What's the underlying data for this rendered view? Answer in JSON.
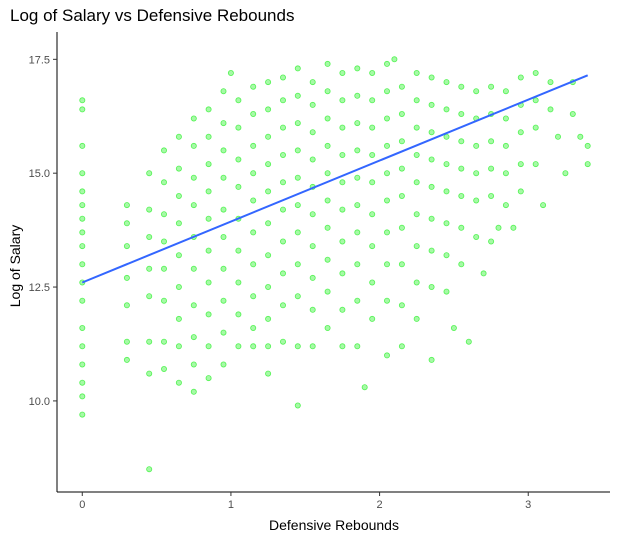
{
  "chart_data": {
    "type": "scatter",
    "title": "Log of Salary vs Defensive Rebounds",
    "xlabel": "Defensive Rebounds",
    "ylabel": "Log of Salary",
    "xlim": [
      -0.17,
      3.55
    ],
    "ylim": [
      8.0,
      18.1
    ],
    "x_ticks": [
      0,
      1,
      2,
      3
    ],
    "y_ticks": [
      10.0,
      12.5,
      15.0,
      17.5
    ],
    "x_tick_labels": [
      "0",
      "1",
      "2",
      "3"
    ],
    "y_tick_labels": [
      "10.0",
      "12.5",
      "15.0",
      "17.5"
    ],
    "grid": false,
    "series": [
      {
        "kind": "points",
        "color": "#00ee00",
        "opacity": 0.35,
        "points": [
          [
            0.0,
            16.6
          ],
          [
            0.0,
            16.4
          ],
          [
            0.0,
            15.6
          ],
          [
            0.0,
            15.0
          ],
          [
            0.0,
            14.6
          ],
          [
            0.0,
            14.3
          ],
          [
            0.0,
            14.0
          ],
          [
            0.0,
            13.7
          ],
          [
            0.0,
            13.4
          ],
          [
            0.0,
            13.0
          ],
          [
            0.0,
            12.6
          ],
          [
            0.0,
            12.2
          ],
          [
            0.0,
            11.6
          ],
          [
            0.0,
            11.2
          ],
          [
            0.0,
            10.8
          ],
          [
            0.0,
            10.4
          ],
          [
            0.0,
            10.1
          ],
          [
            0.0,
            9.7
          ],
          [
            0.3,
            14.3
          ],
          [
            0.3,
            13.9
          ],
          [
            0.3,
            13.4
          ],
          [
            0.3,
            12.7
          ],
          [
            0.3,
            12.1
          ],
          [
            0.3,
            11.3
          ],
          [
            0.3,
            10.9
          ],
          [
            0.45,
            15.0
          ],
          [
            0.45,
            14.2
          ],
          [
            0.45,
            13.6
          ],
          [
            0.45,
            12.9
          ],
          [
            0.45,
            12.3
          ],
          [
            0.45,
            11.3
          ],
          [
            0.45,
            10.6
          ],
          [
            0.45,
            8.5
          ],
          [
            0.55,
            15.5
          ],
          [
            0.55,
            14.8
          ],
          [
            0.55,
            14.1
          ],
          [
            0.55,
            13.5
          ],
          [
            0.55,
            12.9
          ],
          [
            0.55,
            12.2
          ],
          [
            0.55,
            11.3
          ],
          [
            0.55,
            10.7
          ],
          [
            0.65,
            15.8
          ],
          [
            0.65,
            15.1
          ],
          [
            0.65,
            14.5
          ],
          [
            0.65,
            13.9
          ],
          [
            0.65,
            13.2
          ],
          [
            0.65,
            12.5
          ],
          [
            0.65,
            11.8
          ],
          [
            0.65,
            11.2
          ],
          [
            0.65,
            10.4
          ],
          [
            0.75,
            16.2
          ],
          [
            0.75,
            15.6
          ],
          [
            0.75,
            14.9
          ],
          [
            0.75,
            14.3
          ],
          [
            0.75,
            13.6
          ],
          [
            0.75,
            12.9
          ],
          [
            0.75,
            12.1
          ],
          [
            0.75,
            11.4
          ],
          [
            0.75,
            10.8
          ],
          [
            0.75,
            10.2
          ],
          [
            0.85,
            16.4
          ],
          [
            0.85,
            15.8
          ],
          [
            0.85,
            15.2
          ],
          [
            0.85,
            14.6
          ],
          [
            0.85,
            14.0
          ],
          [
            0.85,
            13.3
          ],
          [
            0.85,
            12.6
          ],
          [
            0.85,
            11.9
          ],
          [
            0.85,
            11.2
          ],
          [
            0.85,
            10.5
          ],
          [
            0.95,
            16.8
          ],
          [
            0.95,
            16.1
          ],
          [
            0.95,
            15.5
          ],
          [
            0.95,
            14.9
          ],
          [
            0.95,
            14.2
          ],
          [
            0.95,
            13.6
          ],
          [
            0.95,
            12.9
          ],
          [
            0.95,
            12.2
          ],
          [
            0.95,
            11.5
          ],
          [
            0.95,
            10.8
          ],
          [
            1.0,
            17.2
          ],
          [
            1.05,
            16.6
          ],
          [
            1.05,
            16.0
          ],
          [
            1.05,
            15.3
          ],
          [
            1.05,
            14.7
          ],
          [
            1.05,
            14.0
          ],
          [
            1.05,
            13.3
          ],
          [
            1.05,
            12.6
          ],
          [
            1.05,
            11.9
          ],
          [
            1.05,
            11.2
          ],
          [
            1.15,
            16.9
          ],
          [
            1.15,
            16.3
          ],
          [
            1.15,
            15.6
          ],
          [
            1.15,
            15.0
          ],
          [
            1.15,
            14.4
          ],
          [
            1.15,
            13.7
          ],
          [
            1.15,
            13.0
          ],
          [
            1.15,
            12.3
          ],
          [
            1.15,
            11.6
          ],
          [
            1.15,
            11.2
          ],
          [
            1.25,
            17.0
          ],
          [
            1.25,
            16.4
          ],
          [
            1.25,
            15.8
          ],
          [
            1.25,
            15.2
          ],
          [
            1.25,
            14.6
          ],
          [
            1.25,
            13.9
          ],
          [
            1.25,
            13.2
          ],
          [
            1.25,
            12.5
          ],
          [
            1.25,
            11.8
          ],
          [
            1.25,
            11.2
          ],
          [
            1.25,
            10.6
          ],
          [
            1.35,
            17.1
          ],
          [
            1.35,
            16.6
          ],
          [
            1.35,
            16.0
          ],
          [
            1.35,
            15.4
          ],
          [
            1.35,
            14.8
          ],
          [
            1.35,
            14.2
          ],
          [
            1.35,
            13.5
          ],
          [
            1.35,
            12.8
          ],
          [
            1.35,
            12.1
          ],
          [
            1.35,
            11.3
          ],
          [
            1.45,
            17.3
          ],
          [
            1.45,
            16.7
          ],
          [
            1.45,
            16.1
          ],
          [
            1.45,
            15.5
          ],
          [
            1.45,
            14.9
          ],
          [
            1.45,
            14.3
          ],
          [
            1.45,
            13.7
          ],
          [
            1.45,
            13.0
          ],
          [
            1.45,
            12.3
          ],
          [
            1.45,
            11.2
          ],
          [
            1.45,
            9.9
          ],
          [
            1.55,
            17.0
          ],
          [
            1.55,
            16.5
          ],
          [
            1.55,
            15.9
          ],
          [
            1.55,
            15.3
          ],
          [
            1.55,
            14.7
          ],
          [
            1.55,
            14.1
          ],
          [
            1.55,
            13.4
          ],
          [
            1.55,
            12.7
          ],
          [
            1.55,
            12.0
          ],
          [
            1.55,
            11.2
          ],
          [
            1.65,
            17.4
          ],
          [
            1.65,
            16.8
          ],
          [
            1.65,
            16.2
          ],
          [
            1.65,
            15.6
          ],
          [
            1.65,
            15.0
          ],
          [
            1.65,
            14.4
          ],
          [
            1.65,
            13.8
          ],
          [
            1.65,
            13.1
          ],
          [
            1.65,
            12.4
          ],
          [
            1.65,
            11.6
          ],
          [
            1.75,
            17.2
          ],
          [
            1.75,
            16.6
          ],
          [
            1.75,
            16.0
          ],
          [
            1.75,
            15.4
          ],
          [
            1.75,
            14.8
          ],
          [
            1.75,
            14.2
          ],
          [
            1.75,
            13.5
          ],
          [
            1.75,
            12.8
          ],
          [
            1.75,
            12.0
          ],
          [
            1.75,
            11.2
          ],
          [
            1.85,
            17.3
          ],
          [
            1.85,
            16.7
          ],
          [
            1.85,
            16.1
          ],
          [
            1.85,
            15.5
          ],
          [
            1.85,
            14.9
          ],
          [
            1.85,
            14.3
          ],
          [
            1.85,
            13.7
          ],
          [
            1.85,
            13.0
          ],
          [
            1.85,
            12.2
          ],
          [
            1.85,
            11.2
          ],
          [
            1.9,
            10.3
          ],
          [
            1.95,
            17.2
          ],
          [
            1.95,
            16.6
          ],
          [
            1.95,
            16.0
          ],
          [
            1.95,
            15.4
          ],
          [
            1.95,
            14.8
          ],
          [
            1.95,
            14.1
          ],
          [
            1.95,
            13.4
          ],
          [
            1.95,
            12.6
          ],
          [
            1.95,
            11.8
          ],
          [
            2.05,
            17.4
          ],
          [
            2.05,
            16.8
          ],
          [
            2.05,
            16.2
          ],
          [
            2.05,
            15.6
          ],
          [
            2.05,
            15.0
          ],
          [
            2.05,
            14.4
          ],
          [
            2.05,
            13.7
          ],
          [
            2.05,
            13.0
          ],
          [
            2.05,
            12.2
          ],
          [
            2.05,
            11.0
          ],
          [
            2.1,
            17.5
          ],
          [
            2.15,
            16.9
          ],
          [
            2.15,
            16.3
          ],
          [
            2.15,
            15.7
          ],
          [
            2.15,
            15.1
          ],
          [
            2.15,
            14.5
          ],
          [
            2.15,
            13.8
          ],
          [
            2.15,
            13.0
          ],
          [
            2.15,
            12.1
          ],
          [
            2.15,
            11.2
          ],
          [
            2.25,
            17.2
          ],
          [
            2.25,
            16.6
          ],
          [
            2.25,
            16.0
          ],
          [
            2.25,
            15.4
          ],
          [
            2.25,
            14.8
          ],
          [
            2.25,
            14.1
          ],
          [
            2.25,
            13.4
          ],
          [
            2.25,
            12.6
          ],
          [
            2.25,
            11.8
          ],
          [
            2.35,
            17.1
          ],
          [
            2.35,
            16.5
          ],
          [
            2.35,
            15.9
          ],
          [
            2.35,
            15.3
          ],
          [
            2.35,
            14.7
          ],
          [
            2.35,
            14.0
          ],
          [
            2.35,
            13.3
          ],
          [
            2.35,
            12.5
          ],
          [
            2.35,
            10.9
          ],
          [
            2.45,
            17.0
          ],
          [
            2.45,
            16.4
          ],
          [
            2.45,
            15.8
          ],
          [
            2.45,
            15.2
          ],
          [
            2.45,
            14.6
          ],
          [
            2.45,
            13.9
          ],
          [
            2.45,
            13.2
          ],
          [
            2.45,
            12.4
          ],
          [
            2.5,
            11.6
          ],
          [
            2.55,
            16.9
          ],
          [
            2.55,
            16.3
          ],
          [
            2.55,
            15.7
          ],
          [
            2.55,
            15.1
          ],
          [
            2.55,
            14.5
          ],
          [
            2.55,
            13.8
          ],
          [
            2.55,
            13.0
          ],
          [
            2.6,
            11.3
          ],
          [
            2.65,
            16.8
          ],
          [
            2.65,
            16.2
          ],
          [
            2.65,
            15.6
          ],
          [
            2.65,
            15.0
          ],
          [
            2.65,
            14.4
          ],
          [
            2.65,
            13.6
          ],
          [
            2.75,
            16.9
          ],
          [
            2.75,
            16.3
          ],
          [
            2.75,
            15.7
          ],
          [
            2.75,
            15.1
          ],
          [
            2.75,
            14.5
          ],
          [
            2.75,
            13.5
          ],
          [
            2.7,
            12.8
          ],
          [
            2.85,
            16.8
          ],
          [
            2.85,
            16.2
          ],
          [
            2.85,
            15.6
          ],
          [
            2.85,
            15.0
          ],
          [
            2.85,
            14.3
          ],
          [
            2.8,
            13.8
          ],
          [
            2.95,
            17.1
          ],
          [
            2.95,
            16.5
          ],
          [
            2.95,
            15.9
          ],
          [
            2.95,
            15.2
          ],
          [
            2.95,
            14.6
          ],
          [
            2.9,
            13.8
          ],
          [
            3.05,
            17.2
          ],
          [
            3.05,
            16.6
          ],
          [
            3.05,
            16.0
          ],
          [
            3.05,
            15.2
          ],
          [
            3.1,
            14.3
          ],
          [
            3.15,
            17.0
          ],
          [
            3.15,
            16.4
          ],
          [
            3.2,
            15.8
          ],
          [
            3.25,
            15.0
          ],
          [
            3.3,
            17.0
          ],
          [
            3.3,
            16.3
          ],
          [
            3.35,
            15.8
          ],
          [
            3.4,
            15.6
          ],
          [
            3.4,
            15.2
          ]
        ]
      },
      {
        "kind": "trendline",
        "color": "#3366ff",
        "x": [
          0.0,
          3.4
        ],
        "y": [
          12.6,
          17.15
        ]
      }
    ]
  }
}
